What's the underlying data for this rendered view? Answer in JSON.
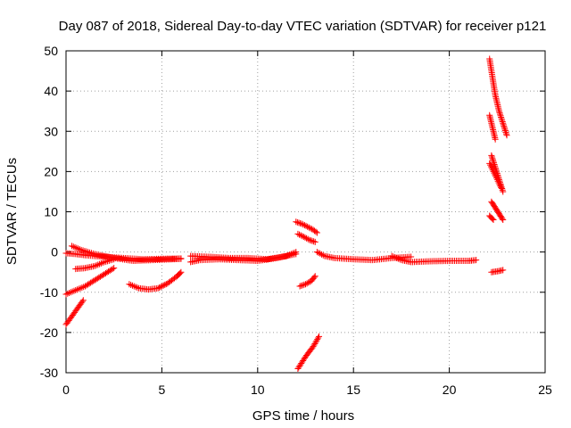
{
  "chart_data": {
    "type": "scatter",
    "title": "Day 087 of 2018, Sidereal Day-to-day VTEC variation (SDTVAR) for receiver p121",
    "xlabel": "GPS time / hours",
    "ylabel": "SDTVAR / TECUs",
    "xlim": [
      0,
      25
    ],
    "ylim": [
      -30,
      50
    ],
    "xticks": [
      "0",
      "5",
      "10",
      "15",
      "20",
      "25"
    ],
    "yticks": [
      "-30",
      "-20",
      "-10",
      "0",
      "10",
      "20",
      "30",
      "40",
      "50"
    ],
    "grid": true,
    "marker": "+",
    "color": "#ff0000",
    "series": [
      {
        "x": [
          0.0,
          0.5,
          1.0,
          2.0,
          3.0,
          4.0,
          5.0,
          6.0
        ],
        "y": [
          -0.3,
          -0.5,
          -0.8,
          -1.2,
          -1.5,
          -1.8,
          -1.7,
          -1.6
        ]
      },
      {
        "x": [
          0.3,
          0.8,
          1.5,
          2.5,
          3.5,
          4.5,
          5.5,
          6.0
        ],
        "y": [
          1.5,
          0.5,
          -0.5,
          -1.5,
          -2.2,
          -2.0,
          -1.8,
          -1.7
        ]
      },
      {
        "x": [
          0.5,
          1.0,
          1.5,
          2.0,
          2.5
        ],
        "y": [
          -4.2,
          -4.0,
          -3.5,
          -2.5,
          -1.8
        ]
      },
      {
        "x": [
          0.0,
          0.5,
          1.0,
          1.5,
          2.0,
          2.5
        ],
        "y": [
          -10.5,
          -9.5,
          -8.5,
          -7.0,
          -5.5,
          -4.0
        ]
      },
      {
        "x": [
          0.0,
          0.3,
          0.6,
          0.9
        ],
        "y": [
          -18.0,
          -16.0,
          -14.0,
          -12.0
        ]
      },
      {
        "x": [
          3.3,
          3.8,
          4.3,
          4.8,
          5.3,
          5.8,
          6.0
        ],
        "y": [
          -8.0,
          -9.0,
          -9.3,
          -9.0,
          -7.8,
          -6.0,
          -5.0
        ]
      },
      {
        "x": [
          6.5,
          7.0,
          8.0,
          9.0,
          10.0,
          11.0,
          12.0
        ],
        "y": [
          -2.5,
          -2.0,
          -1.8,
          -2.0,
          -2.2,
          -1.5,
          -0.5
        ]
      },
      {
        "x": [
          6.5,
          7.5,
          8.5,
          9.5,
          10.5,
          11.5,
          12.0
        ],
        "y": [
          -1.0,
          -1.2,
          -1.5,
          -1.5,
          -1.8,
          -1.0,
          0.0
        ]
      },
      {
        "x": [
          12.0,
          12.3,
          12.6,
          12.9,
          13.1
        ],
        "y": [
          7.5,
          7.0,
          6.3,
          5.5,
          4.8
        ]
      },
      {
        "x": [
          12.1,
          12.4,
          12.7,
          13.0
        ],
        "y": [
          4.5,
          3.8,
          3.0,
          2.5
        ]
      },
      {
        "x": [
          12.2,
          12.5,
          12.8,
          13.0
        ],
        "y": [
          -8.5,
          -8.0,
          -7.2,
          -6.0
        ]
      },
      {
        "x": [
          12.1,
          12.5,
          12.9,
          13.2
        ],
        "y": [
          -29.0,
          -26.0,
          -23.5,
          -21.0
        ]
      },
      {
        "x": [
          13.1,
          13.5,
          14.0,
          15.0,
          16.0,
          17.0,
          18.0
        ],
        "y": [
          0.0,
          -1.0,
          -1.5,
          -1.8,
          -2.0,
          -1.5,
          -1.2
        ]
      },
      {
        "x": [
          17.0,
          17.5,
          18.0,
          19.0,
          20.0,
          21.0,
          21.4
        ],
        "y": [
          -1.0,
          -2.0,
          -2.5,
          -2.3,
          -2.2,
          -2.2,
          -2.0
        ]
      },
      {
        "x": [
          22.1,
          22.2,
          22.3,
          22.4,
          22.6,
          22.8,
          23.0
        ],
        "y": [
          48.0,
          45.0,
          42.0,
          39.0,
          35.0,
          32.0,
          29.0
        ]
      },
      {
        "x": [
          22.1,
          22.2,
          22.3,
          22.4
        ],
        "y": [
          34.0,
          32.0,
          30.0,
          28.0
        ]
      },
      {
        "x": [
          22.2,
          22.4,
          22.6,
          22.8
        ],
        "y": [
          24.0,
          21.0,
          18.0,
          15.0
        ]
      },
      {
        "x": [
          22.1,
          22.3,
          22.5,
          22.7
        ],
        "y": [
          22.0,
          20.0,
          18.0,
          16.0
        ]
      },
      {
        "x": [
          22.2,
          22.4,
          22.6,
          22.8
        ],
        "y": [
          12.5,
          11.0,
          9.5,
          8.0
        ]
      },
      {
        "x": [
          22.1,
          22.3
        ],
        "y": [
          9.0,
          8.0
        ]
      },
      {
        "x": [
          22.2,
          22.5,
          22.8
        ],
        "y": [
          -5.0,
          -4.8,
          -4.5
        ]
      }
    ]
  }
}
